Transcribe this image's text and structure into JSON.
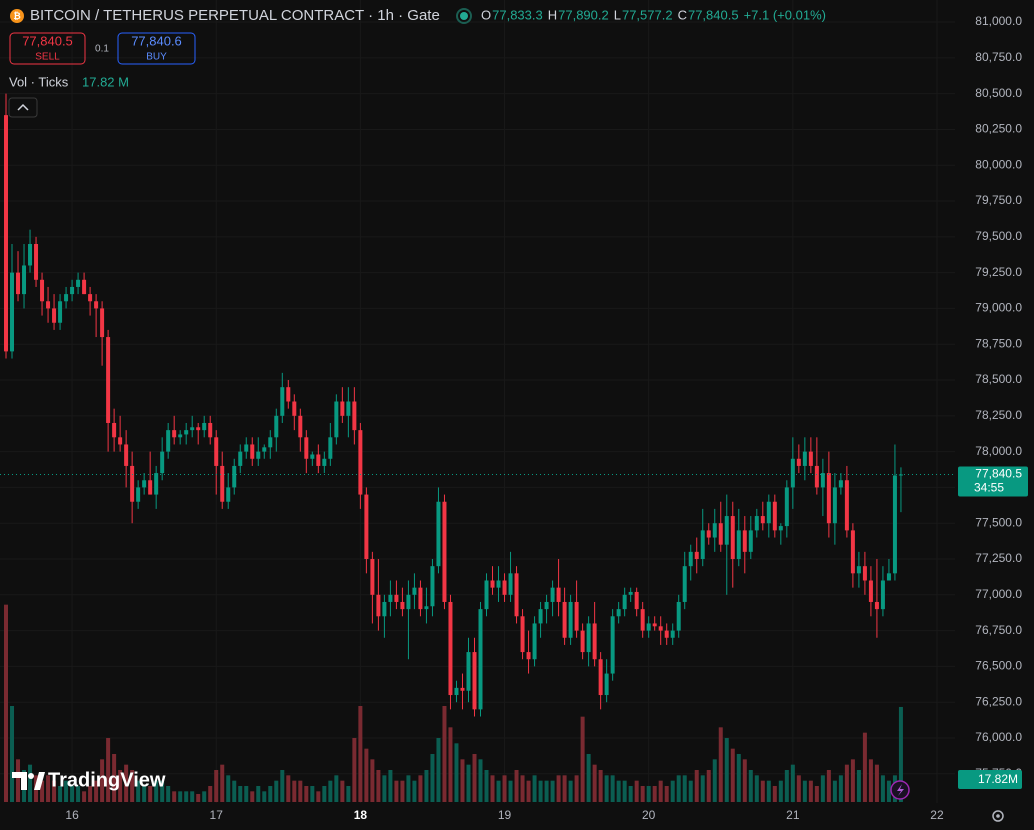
{
  "chart_data": {
    "type": "candlestick",
    "title": "BITCOIN / TETHERUS PERPETUAL CONTRACT · 1h · Gate",
    "ohlc_legend": [
      {
        "key": "O",
        "value": "77,833.3"
      },
      {
        "key": "H",
        "value": "77,890.2"
      },
      {
        "key": "L",
        "value": "77,577.2"
      },
      {
        "key": "C",
        "value": "77,840.5"
      }
    ],
    "change": "+7.1 (+0.01%)",
    "sell": {
      "price": "77,840.5",
      "label": "SELL"
    },
    "spread": "0.1",
    "buy": {
      "price": "77,840.6",
      "label": "BUY"
    },
    "volume_legend": {
      "name": "Vol · Ticks",
      "value": "17.82 M"
    },
    "last_price_label": "77,840.5",
    "countdown": "34:55",
    "volume_axis_label": "17.82M",
    "watermark": "TradingView",
    "up_color": "#089981",
    "down_color": "#f23645",
    "volume_up_color": "#0b5e52",
    "volume_down_color": "#7a2a31",
    "grid": true,
    "xlim": [
      -1,
      158
    ],
    "xticks": [
      {
        "value": 11,
        "label": "16"
      },
      {
        "value": 35,
        "label": "17"
      },
      {
        "value": 59,
        "label": "18"
      },
      {
        "value": 83,
        "label": "19"
      },
      {
        "value": 107,
        "label": "20"
      },
      {
        "value": 131,
        "label": "21"
      },
      {
        "value": 155,
        "label": "22"
      }
    ],
    "ylim": [
      75546,
      81154
    ],
    "yticks": [
      {
        "value": 75750,
        "label": "75,750.0"
      },
      {
        "value": 76000,
        "label": "76,000.0"
      },
      {
        "value": 76250,
        "label": "76,250.0"
      },
      {
        "value": 76500,
        "label": "76,500.0"
      },
      {
        "value": 76750,
        "label": "76,750.0"
      },
      {
        "value": 77000,
        "label": "77,000.0"
      },
      {
        "value": 77250,
        "label": "77,250.0"
      },
      {
        "value": 77500,
        "label": "77,500.0"
      },
      {
        "value": 77750,
        "label": "77,750.0"
      },
      {
        "value": 78000,
        "label": "78,000.0"
      },
      {
        "value": 78250,
        "label": "78,250.0"
      },
      {
        "value": 78500,
        "label": "78,500.0"
      },
      {
        "value": 78750,
        "label": "78,750.0"
      },
      {
        "value": 79000,
        "label": "79,000.0"
      },
      {
        "value": 79250,
        "label": "79,250.0"
      },
      {
        "value": 79500,
        "label": "79,500.0"
      },
      {
        "value": 79750,
        "label": "79,750.0"
      },
      {
        "value": 80000,
        "label": "80,000.0"
      },
      {
        "value": 80250,
        "label": "80,250.0"
      },
      {
        "value": 80500,
        "label": "80,500.0"
      },
      {
        "value": 80750,
        "label": "80,750.0"
      },
      {
        "value": 81000,
        "label": "81,000.0"
      }
    ],
    "volume_lim": [
      0,
      37.5
    ],
    "ohlc": [
      [
        80350,
        80500,
        78650,
        78700
      ],
      [
        78700,
        79450,
        78650,
        79250
      ],
      [
        79250,
        79400,
        79050,
        79100
      ],
      [
        79100,
        79450,
        79000,
        79300
      ],
      [
        79300,
        79550,
        79250,
        79450
      ],
      [
        79450,
        79500,
        79150,
        79200
      ],
      [
        79200,
        79250,
        78950,
        79050
      ],
      [
        79050,
        79150,
        78900,
        79000
      ],
      [
        79000,
        79100,
        78850,
        78900
      ],
      [
        78900,
        79100,
        78850,
        79050
      ],
      [
        79050,
        79150,
        79000,
        79100
      ],
      [
        79100,
        79200,
        79050,
        79150
      ],
      [
        79150,
        79250,
        79100,
        79200
      ],
      [
        79200,
        79250,
        79100,
        79100
      ],
      [
        79100,
        79150,
        78950,
        79050
      ],
      [
        79050,
        79100,
        78800,
        79000
      ],
      [
        79000,
        79050,
        78600,
        78800
      ],
      [
        78800,
        78850,
        78000,
        78200
      ],
      [
        78200,
        78300,
        78000,
        78100
      ],
      [
        78100,
        78250,
        78000,
        78050
      ],
      [
        78050,
        78150,
        77750,
        77900
      ],
      [
        77900,
        78000,
        77500,
        77650
      ],
      [
        77650,
        77800,
        77600,
        77750
      ],
      [
        77750,
        77850,
        77700,
        77800
      ],
      [
        77800,
        78000,
        77700,
        77700
      ],
      [
        77700,
        77900,
        77600,
        77850
      ],
      [
        77850,
        78100,
        77800,
        78000
      ],
      [
        78000,
        78200,
        77950,
        78150
      ],
      [
        78150,
        78250,
        78050,
        78100
      ],
      [
        78100,
        78150,
        78050,
        78120
      ],
      [
        78120,
        78200,
        78050,
        78150
      ],
      [
        78150,
        78250,
        78100,
        78170
      ],
      [
        78170,
        78200,
        78050,
        78150
      ],
      [
        78150,
        78250,
        78100,
        78200
      ],
      [
        78200,
        78250,
        78050,
        78100
      ],
      [
        78100,
        78150,
        77700,
        77900
      ],
      [
        77900,
        78000,
        77600,
        77650
      ],
      [
        77650,
        77850,
        77600,
        77750
      ],
      [
        77750,
        77950,
        77700,
        77900
      ],
      [
        77900,
        78050,
        77850,
        78000
      ],
      [
        78000,
        78100,
        77950,
        78050
      ],
      [
        78050,
        78100,
        77900,
        77950
      ],
      [
        77950,
        78100,
        77900,
        78000
      ],
      [
        78000,
        78050,
        77950,
        78030
      ],
      [
        78030,
        78150,
        77950,
        78100
      ],
      [
        78100,
        78300,
        78000,
        78250
      ],
      [
        78250,
        78550,
        78200,
        78450
      ],
      [
        78450,
        78500,
        78300,
        78350
      ],
      [
        78350,
        78400,
        78150,
        78250
      ],
      [
        78250,
        78300,
        78000,
        78100
      ],
      [
        78100,
        78150,
        77850,
        77950
      ],
      [
        77950,
        78000,
        77900,
        77980
      ],
      [
        77980,
        78050,
        77850,
        77900
      ],
      [
        77900,
        78000,
        77850,
        77950
      ],
      [
        77950,
        78200,
        77900,
        78100
      ],
      [
        78100,
        78400,
        78050,
        78350
      ],
      [
        78350,
        78450,
        78200,
        78250
      ],
      [
        78250,
        78450,
        78100,
        78350
      ],
      [
        78350,
        78450,
        78050,
        78150
      ],
      [
        78150,
        78200,
        77600,
        77700
      ],
      [
        77700,
        77750,
        77150,
        77250
      ],
      [
        77250,
        77300,
        76800,
        77000
      ],
      [
        77000,
        77250,
        76750,
        76850
      ],
      [
        76850,
        77000,
        76700,
        76950
      ],
      [
        76950,
        77100,
        76850,
        77000
      ],
      [
        77000,
        77100,
        76900,
        76950
      ],
      [
        76950,
        77050,
        76850,
        76900
      ],
      [
        76900,
        77100,
        76550,
        77000
      ],
      [
        77000,
        77150,
        76900,
        77050
      ],
      [
        77050,
        77100,
        76850,
        76900
      ],
      [
        76900,
        77050,
        76800,
        76920
      ],
      [
        76920,
        77250,
        76850,
        77200
      ],
      [
        77200,
        77750,
        77150,
        77650
      ],
      [
        77650,
        77700,
        76900,
        76950
      ],
      [
        76950,
        77000,
        76200,
        76300
      ],
      [
        76300,
        76400,
        76250,
        76350
      ],
      [
        76350,
        76450,
        76200,
        76330
      ],
      [
        76330,
        76700,
        76250,
        76600
      ],
      [
        76600,
        76700,
        76150,
        76200
      ],
      [
        76200,
        76950,
        76150,
        76900
      ],
      [
        76900,
        77150,
        76850,
        77100
      ],
      [
        77100,
        77200,
        77000,
        77050
      ],
      [
        77050,
        77200,
        76950,
        77100
      ],
      [
        77100,
        77150,
        76950,
        77000
      ],
      [
        77000,
        77300,
        76950,
        77150
      ],
      [
        77150,
        77200,
        76800,
        76850
      ],
      [
        76850,
        76900,
        76550,
        76600
      ],
      [
        76600,
        76750,
        76450,
        76550
      ],
      [
        76550,
        76850,
        76500,
        76800
      ],
      [
        76800,
        76950,
        76700,
        76900
      ],
      [
        76900,
        77000,
        76800,
        76950
      ],
      [
        76950,
        77100,
        76850,
        77050
      ],
      [
        77050,
        77250,
        76850,
        76950
      ],
      [
        76950,
        77050,
        76650,
        76700
      ],
      [
        76700,
        77000,
        76650,
        76950
      ],
      [
        76950,
        77100,
        76700,
        76750
      ],
      [
        76750,
        76800,
        76550,
        76600
      ],
      [
        76600,
        76850,
        76500,
        76800
      ],
      [
        76800,
        76950,
        76500,
        76550
      ],
      [
        76550,
        76600,
        76200,
        76300
      ],
      [
        76300,
        76550,
        76250,
        76450
      ],
      [
        76450,
        76900,
        76400,
        76850
      ],
      [
        76850,
        76950,
        76800,
        76900
      ],
      [
        76900,
        77050,
        76850,
        77000
      ],
      [
        77000,
        77050,
        76950,
        77020
      ],
      [
        77020,
        77050,
        76850,
        76900
      ],
      [
        76900,
        76950,
        76700,
        76750
      ],
      [
        76750,
        76850,
        76700,
        76800
      ],
      [
        76800,
        76850,
        76750,
        76780
      ],
      [
        76780,
        76850,
        76650,
        76750
      ],
      [
        76750,
        76800,
        76650,
        76700
      ],
      [
        76700,
        76800,
        76650,
        76750
      ],
      [
        76750,
        77000,
        76700,
        76950
      ],
      [
        76950,
        77300,
        76900,
        77200
      ],
      [
        77200,
        77350,
        77100,
        77300
      ],
      [
        77300,
        77400,
        77150,
        77250
      ],
      [
        77250,
        77600,
        77200,
        77450
      ],
      [
        77450,
        77500,
        77350,
        77400
      ],
      [
        77400,
        77600,
        77300,
        77500
      ],
      [
        77500,
        77650,
        77300,
        77350
      ],
      [
        77350,
        77700,
        77000,
        77550
      ],
      [
        77550,
        77650,
        77050,
        77250
      ],
      [
        77250,
        77600,
        77200,
        77450
      ],
      [
        77450,
        77550,
        77150,
        77300
      ],
      [
        77300,
        77550,
        77250,
        77450
      ],
      [
        77450,
        77600,
        77400,
        77550
      ],
      [
        77550,
        77650,
        77450,
        77500
      ],
      [
        77500,
        77700,
        77400,
        77650
      ],
      [
        77650,
        77700,
        77400,
        77450
      ],
      [
        77450,
        77500,
        77350,
        77480
      ],
      [
        77480,
        77800,
        77400,
        77750
      ],
      [
        77750,
        78100,
        77600,
        77950
      ],
      [
        77950,
        78050,
        77850,
        77900
      ],
      [
        77900,
        78100,
        77800,
        78000
      ],
      [
        78000,
        78100,
        77850,
        77900
      ],
      [
        77900,
        78100,
        77700,
        77750
      ],
      [
        77750,
        77950,
        77550,
        77850
      ],
      [
        77850,
        78000,
        77400,
        77500
      ],
      [
        77500,
        77850,
        77350,
        77750
      ],
      [
        77750,
        77850,
        77700,
        77800
      ],
      [
        77800,
        77900,
        77400,
        77450
      ],
      [
        77450,
        77500,
        77050,
        77150
      ],
      [
        77150,
        77300,
        77050,
        77200
      ],
      [
        77200,
        77300,
        77000,
        77100
      ],
      [
        77100,
        77200,
        76850,
        76950
      ],
      [
        76950,
        77250,
        76700,
        76900
      ],
      [
        76900,
        77200,
        76850,
        77100
      ],
      [
        77100,
        77250,
        77100,
        77150
      ],
      [
        77150,
        78050,
        77100,
        77833.3
      ],
      [
        77833.3,
        77890.2,
        77577.2,
        77840.5
      ]
    ],
    "volume": [
      37,
      18,
      8,
      6,
      7,
      5,
      4,
      5,
      4,
      3,
      4,
      3,
      3,
      2,
      3,
      4,
      8,
      12,
      9,
      6,
      7,
      6,
      4,
      3,
      3,
      4,
      4,
      3,
      2,
      2,
      2,
      2,
      1.5,
      2,
      3,
      6,
      7,
      5,
      4,
      3,
      3,
      2,
      3,
      2,
      3,
      4,
      6,
      5,
      4,
      4,
      3,
      3,
      2,
      3,
      4,
      5,
      4,
      3,
      12,
      18,
      10,
      8,
      6,
      5,
      6,
      4,
      4,
      5,
      4,
      5,
      6,
      9,
      12,
      18,
      14,
      11,
      8,
      7,
      9,
      8,
      6,
      5,
      4,
      5,
      4,
      6,
      5,
      4,
      5,
      4,
      4,
      4,
      5,
      5,
      4,
      5,
      16,
      9,
      7,
      6,
      5,
      5,
      4,
      4,
      3,
      4,
      3,
      3,
      3,
      4,
      3,
      4,
      5,
      5,
      4,
      6,
      5,
      6,
      8,
      14,
      12,
      10,
      9,
      8,
      6,
      5,
      4,
      4,
      3,
      4,
      6,
      7,
      5,
      4,
      4,
      3,
      5,
      6,
      4,
      5,
      7,
      8,
      6,
      13,
      8,
      7,
      5,
      4,
      5,
      17.82
    ]
  }
}
